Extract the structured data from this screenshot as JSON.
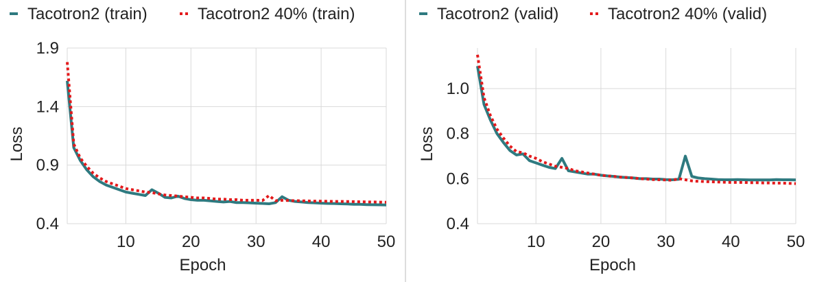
{
  "colors": {
    "solid": "#2e7a80",
    "dotted": "#e31a1c",
    "grid": "#d9d9d9",
    "divider": "#bbbbbb"
  },
  "chart_data": [
    {
      "type": "line",
      "xlabel": "Epoch",
      "ylabel": "Loss",
      "xlim": [
        1,
        50
      ],
      "ylim": [
        0.4,
        1.9
      ],
      "xticks": [
        10,
        20,
        30,
        40,
        50
      ],
      "xtick_labels": [
        "10",
        "20",
        "30",
        "40",
        "50"
      ],
      "yticks": [
        0.4,
        0.9,
        1.4,
        1.9
      ],
      "ytick_labels": [
        "0.4",
        "0.9",
        "1.4",
        "1.9"
      ],
      "grid": true,
      "legend": "top",
      "series": [
        {
          "name": "Tacotron2 (train)",
          "style": "solid",
          "x": [
            1,
            2,
            3,
            4,
            5,
            6,
            7,
            8,
            9,
            10,
            11,
            12,
            13,
            14,
            15,
            16,
            17,
            18,
            19,
            20,
            21,
            22,
            23,
            24,
            25,
            26,
            27,
            28,
            29,
            30,
            31,
            32,
            33,
            34,
            35,
            36,
            37,
            38,
            39,
            40,
            41,
            42,
            43,
            44,
            45,
            46,
            47,
            48,
            49,
            50
          ],
          "values": [
            1.62,
            1.05,
            0.94,
            0.86,
            0.8,
            0.76,
            0.73,
            0.71,
            0.69,
            0.67,
            0.66,
            0.65,
            0.64,
            0.69,
            0.66,
            0.625,
            0.62,
            0.635,
            0.615,
            0.605,
            0.6,
            0.6,
            0.595,
            0.59,
            0.585,
            0.59,
            0.58,
            0.58,
            0.578,
            0.575,
            0.573,
            0.57,
            0.58,
            0.63,
            0.6,
            0.59,
            0.585,
            0.58,
            0.578,
            0.575,
            0.573,
            0.572,
            0.57,
            0.568,
            0.566,
            0.565,
            0.563,
            0.562,
            0.561,
            0.56
          ]
        },
        {
          "name": "Tacotron2 40% (train)",
          "style": "dotted",
          "x": [
            1,
            2,
            3,
            4,
            5,
            6,
            7,
            8,
            9,
            10,
            11,
            12,
            13,
            14,
            15,
            16,
            17,
            18,
            19,
            20,
            21,
            22,
            23,
            24,
            25,
            26,
            27,
            28,
            29,
            30,
            31,
            32,
            33,
            34,
            35,
            36,
            37,
            38,
            39,
            40,
            41,
            42,
            43,
            44,
            45,
            46,
            47,
            48,
            49,
            50
          ],
          "values": [
            1.78,
            1.08,
            0.96,
            0.89,
            0.83,
            0.79,
            0.76,
            0.74,
            0.72,
            0.7,
            0.69,
            0.68,
            0.67,
            0.665,
            0.655,
            0.645,
            0.64,
            0.635,
            0.63,
            0.625,
            0.62,
            0.62,
            0.615,
            0.61,
            0.61,
            0.605,
            0.605,
            0.6,
            0.6,
            0.6,
            0.598,
            0.64,
            0.596,
            0.6,
            0.598,
            0.596,
            0.595,
            0.594,
            0.593,
            0.592,
            0.591,
            0.59,
            0.59,
            0.589,
            0.588,
            0.587,
            0.586,
            0.585,
            0.584,
            0.583
          ]
        }
      ]
    },
    {
      "type": "line",
      "xlabel": "Epoch",
      "ylabel": "Loss",
      "xlim": [
        1,
        50
      ],
      "ylim": [
        0.4,
        1.18
      ],
      "xticks": [
        10,
        20,
        30,
        40,
        50
      ],
      "xtick_labels": [
        "10",
        "20",
        "30",
        "40",
        "50"
      ],
      "yticks": [
        0.4,
        0.6,
        0.8,
        1.0
      ],
      "ytick_labels": [
        "0.4",
        "0.6",
        "0.8",
        "1.0"
      ],
      "grid": true,
      "legend": "top",
      "series": [
        {
          "name": "Tacotron2 (valid)",
          "style": "solid",
          "x": [
            1,
            2,
            3,
            4,
            5,
            6,
            7,
            8,
            9,
            10,
            11,
            12,
            13,
            14,
            15,
            16,
            17,
            18,
            19,
            20,
            21,
            22,
            23,
            24,
            25,
            26,
            27,
            28,
            29,
            30,
            31,
            32,
            33,
            34,
            35,
            36,
            37,
            38,
            39,
            40,
            41,
            42,
            43,
            44,
            45,
            46,
            47,
            48,
            49,
            50
          ],
          "values": [
            1.1,
            0.93,
            0.86,
            0.8,
            0.76,
            0.725,
            0.705,
            0.71,
            0.68,
            0.67,
            0.66,
            0.65,
            0.645,
            0.69,
            0.635,
            0.63,
            0.625,
            0.62,
            0.62,
            0.615,
            0.612,
            0.61,
            0.607,
            0.605,
            0.603,
            0.6,
            0.6,
            0.598,
            0.598,
            0.596,
            0.595,
            0.597,
            0.7,
            0.61,
            0.603,
            0.6,
            0.598,
            0.596,
            0.595,
            0.595,
            0.596,
            0.595,
            0.594,
            0.594,
            0.594,
            0.594,
            0.596,
            0.595,
            0.595,
            0.594
          ]
        },
        {
          "name": "Tacotron2 40% (valid)",
          "style": "dotted",
          "x": [
            1,
            2,
            3,
            4,
            5,
            6,
            7,
            8,
            9,
            10,
            11,
            12,
            13,
            14,
            15,
            16,
            17,
            18,
            19,
            20,
            21,
            22,
            23,
            24,
            25,
            26,
            27,
            28,
            29,
            30,
            31,
            32,
            33,
            34,
            35,
            36,
            37,
            38,
            39,
            40,
            41,
            42,
            43,
            44,
            45,
            46,
            47,
            48,
            49,
            50
          ],
          "values": [
            1.15,
            0.96,
            0.88,
            0.82,
            0.78,
            0.745,
            0.72,
            0.715,
            0.7,
            0.69,
            0.675,
            0.665,
            0.655,
            0.65,
            0.645,
            0.635,
            0.63,
            0.625,
            0.62,
            0.615,
            0.612,
            0.61,
            0.607,
            0.605,
            0.603,
            0.6,
            0.598,
            0.596,
            0.595,
            0.594,
            0.593,
            0.6,
            0.595,
            0.59,
            0.588,
            0.587,
            0.586,
            0.585,
            0.584,
            0.583,
            0.583,
            0.583,
            0.582,
            0.582,
            0.581,
            0.581,
            0.58,
            0.58,
            0.579,
            0.578
          ]
        }
      ]
    }
  ]
}
